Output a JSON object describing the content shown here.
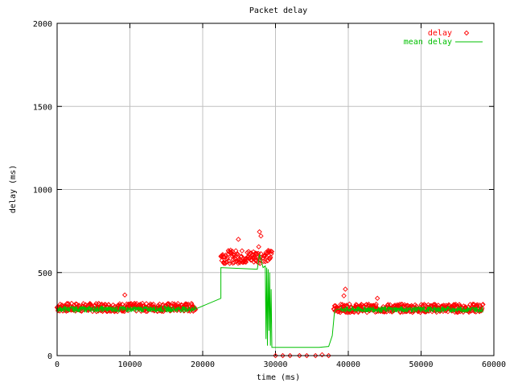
{
  "chart_data": {
    "type": "scatter",
    "title": "Packet delay",
    "xlabel": "time (ms)",
    "ylabel": "delay (ms)",
    "xlim": [
      0,
      60000
    ],
    "ylim": [
      0,
      2000
    ],
    "xticks": [
      0,
      10000,
      20000,
      30000,
      40000,
      50000,
      60000
    ],
    "yticks": [
      0,
      500,
      1000,
      1500,
      2000
    ],
    "grid": true,
    "legend_position": "top-right",
    "colors": {
      "delay": "#ff0000",
      "mean_delay": "#00c000",
      "grid": "#c0c0c0"
    },
    "series": [
      {
        "name": "delay",
        "style": "points",
        "marker": "diamond",
        "segments": [
          {
            "x_start": 0,
            "x_end": 19000,
            "baseline": 290,
            "spread": 25
          },
          {
            "x_start": 22500,
            "x_end": 28000,
            "baseline": 595,
            "spread": 40
          },
          {
            "x_start": 28300,
            "x_end": 29500,
            "baseline": 600,
            "spread": 35
          },
          {
            "x_start": 38000,
            "x_end": 58500,
            "baseline": 285,
            "spread": 25
          }
        ],
        "outliers": [
          {
            "x": 9300,
            "y": 365
          },
          {
            "x": 24900,
            "y": 700
          },
          {
            "x": 27800,
            "y": 745
          },
          {
            "x": 28000,
            "y": 720
          },
          {
            "x": 27700,
            "y": 655
          },
          {
            "x": 39600,
            "y": 400
          },
          {
            "x": 39400,
            "y": 360
          },
          {
            "x": 44000,
            "y": 345
          },
          {
            "x": 30000,
            "y": 0
          },
          {
            "x": 31000,
            "y": 0
          },
          {
            "x": 32000,
            "y": 0
          },
          {
            "x": 33300,
            "y": 0
          },
          {
            "x": 34300,
            "y": 0
          },
          {
            "x": 35500,
            "y": 0
          },
          {
            "x": 36400,
            "y": 5
          },
          {
            "x": 37300,
            "y": 0
          }
        ]
      },
      {
        "name": "mean delay",
        "style": "line",
        "segments": [
          {
            "x_start": 0,
            "x_end": 19000,
            "baseline": 280,
            "spread": 18
          }
        ],
        "path": [
          [
            19000,
            280
          ],
          [
            22500,
            345
          ],
          [
            22500,
            530
          ],
          [
            27500,
            520
          ],
          [
            27800,
            610
          ],
          [
            28300,
            530
          ],
          [
            28600,
            540
          ],
          [
            28700,
            100
          ],
          [
            28800,
            530
          ],
          [
            28900,
            60
          ],
          [
            29000,
            520
          ],
          [
            29100,
            150
          ],
          [
            29200,
            500
          ],
          [
            29300,
            60
          ],
          [
            29400,
            400
          ],
          [
            29500,
            50
          ],
          [
            30000,
            50
          ],
          [
            33000,
            50
          ],
          [
            36000,
            50
          ],
          [
            37300,
            55
          ],
          [
            37800,
            120
          ],
          [
            38100,
            260
          ],
          [
            38400,
            280
          ],
          [
            39000,
            280
          ]
        ],
        "segments_after": [
          {
            "x_start": 39000,
            "x_end": 58500,
            "baseline": 278,
            "spread": 18
          }
        ]
      }
    ]
  }
}
